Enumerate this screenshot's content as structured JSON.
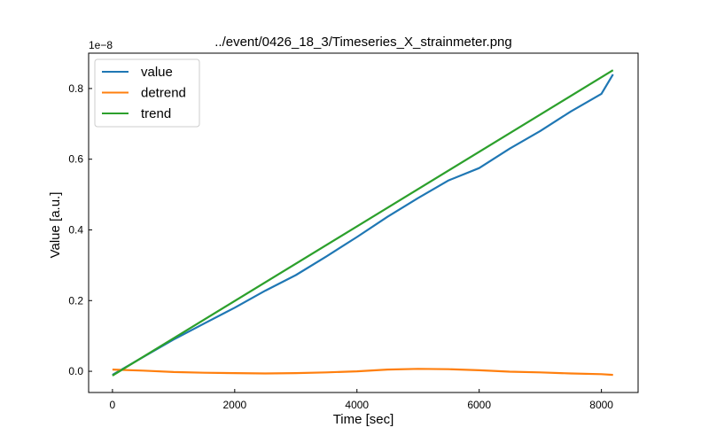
{
  "chart_data": {
    "type": "line",
    "title": "../event/0426_18_3/Timeseries_X_strainmeter.png",
    "xlabel": "Time [sec]",
    "ylabel": "Value [a.u.]",
    "offset_text": "1e−8",
    "xlim": [
      -390,
      8600
    ],
    "ylim": [
      -0.06,
      0.9
    ],
    "x_ticks": [
      0,
      2000,
      4000,
      6000,
      8000
    ],
    "x_tick_labels": [
      "0",
      "2000",
      "4000",
      "6000",
      "8000"
    ],
    "y_ticks": [
      0.0,
      0.2,
      0.4,
      0.6,
      0.8
    ],
    "y_tick_labels": [
      "0.0",
      "0.2",
      "0.4",
      "0.6",
      "0.8"
    ],
    "grid": false,
    "legend": "top-left",
    "series": [
      {
        "name": "value",
        "color": "#1f77b4",
        "x": [
          0,
          500,
          1000,
          1500,
          2000,
          2500,
          3000,
          3500,
          4000,
          4500,
          5000,
          5500,
          6000,
          6500,
          7000,
          7500,
          8000,
          8190
        ],
        "y": [
          -0.01,
          0.04,
          0.09,
          0.135,
          0.18,
          0.228,
          0.272,
          0.325,
          0.38,
          0.437,
          0.49,
          0.54,
          0.575,
          0.63,
          0.68,
          0.735,
          0.785,
          0.84
        ]
      },
      {
        "name": "detrend",
        "color": "#ff7f0e",
        "x": [
          0,
          500,
          1000,
          1500,
          2000,
          2500,
          3000,
          3500,
          4000,
          4500,
          5000,
          5500,
          6000,
          6500,
          7000,
          7500,
          8000,
          8190
        ],
        "y": [
          0.005,
          0.002,
          -0.002,
          -0.004,
          -0.005,
          -0.006,
          -0.005,
          -0.003,
          0.0,
          0.005,
          0.007,
          0.006,
          0.003,
          -0.001,
          -0.003,
          -0.006,
          -0.008,
          -0.01
        ]
      },
      {
        "name": "trend",
        "color": "#2ca02c",
        "x": [
          0,
          8190
        ],
        "y": [
          -0.012,
          0.852
        ]
      }
    ]
  }
}
